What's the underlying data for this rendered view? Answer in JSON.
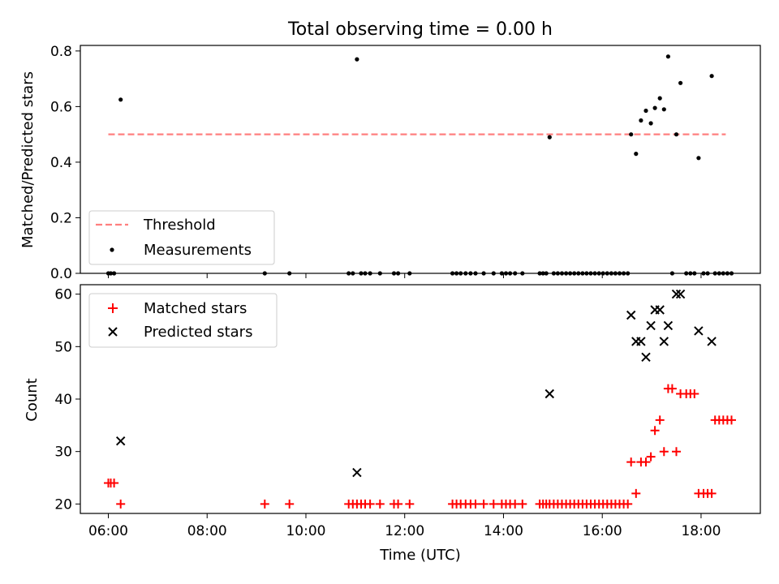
{
  "chart_data": {
    "type": "scatter",
    "title": "Total observing time = 0.00 h",
    "colors": {
      "threshold": "#ff7f7f",
      "measurements": "#000000",
      "matched": "#ff0000",
      "predicted": "#000000"
    },
    "top_panel": {
      "ylabel": "Matched/Predicted stars",
      "ylim": [
        0,
        0.82
      ],
      "yticks": [
        0.0,
        0.2,
        0.4,
        0.6,
        0.8
      ],
      "ytick_labels": [
        "0.0",
        "0.2",
        "0.4",
        "0.6",
        "0.8"
      ],
      "legend_position": "lower-left",
      "threshold": {
        "name": "Threshold",
        "y": 0.5,
        "x_range": [
          "06:00",
          "18:30"
        ],
        "style": "dashed"
      },
      "measurements": {
        "name": "Measurements",
        "points": [
          [
            "06:00",
            0
          ],
          [
            "06:03",
            0
          ],
          [
            "06:07",
            0
          ],
          [
            "06:15",
            0.625
          ],
          [
            "09:10",
            0
          ],
          [
            "09:40",
            0
          ],
          [
            "10:52",
            0
          ],
          [
            "10:57",
            0
          ],
          [
            "11:02",
            0.77
          ],
          [
            "11:07",
            0
          ],
          [
            "11:12",
            0
          ],
          [
            "11:18",
            0
          ],
          [
            "11:30",
            0
          ],
          [
            "11:47",
            0
          ],
          [
            "11:52",
            0
          ],
          [
            "12:06",
            0
          ],
          [
            "12:58",
            0
          ],
          [
            "13:03",
            0
          ],
          [
            "13:08",
            0
          ],
          [
            "13:14",
            0
          ],
          [
            "13:20",
            0
          ],
          [
            "13:26",
            0
          ],
          [
            "13:36",
            0
          ],
          [
            "13:48",
            0
          ],
          [
            "13:58",
            0
          ],
          [
            "14:03",
            0
          ],
          [
            "14:08",
            0
          ],
          [
            "14:14",
            0
          ],
          [
            "14:23",
            0
          ],
          [
            "14:44",
            0
          ],
          [
            "14:48",
            0
          ],
          [
            "14:52",
            0
          ],
          [
            "14:56",
            0.49
          ],
          [
            "15:01",
            0
          ],
          [
            "15:06",
            0
          ],
          [
            "15:11",
            0
          ],
          [
            "15:16",
            0
          ],
          [
            "15:21",
            0
          ],
          [
            "15:26",
            0
          ],
          [
            "15:31",
            0
          ],
          [
            "15:36",
            0
          ],
          [
            "15:41",
            0
          ],
          [
            "15:46",
            0
          ],
          [
            "15:51",
            0
          ],
          [
            "15:56",
            0
          ],
          [
            "16:01",
            0
          ],
          [
            "16:06",
            0
          ],
          [
            "16:11",
            0
          ],
          [
            "16:16",
            0
          ],
          [
            "16:21",
            0
          ],
          [
            "16:26",
            0
          ],
          [
            "16:31",
            0
          ],
          [
            "16:35",
            0.5
          ],
          [
            "16:41",
            0.43
          ],
          [
            "16:47",
            0.55
          ],
          [
            "16:53",
            0.585
          ],
          [
            "16:59",
            0.54
          ],
          [
            "17:04",
            0.595
          ],
          [
            "17:10",
            0.63
          ],
          [
            "17:15",
            0.59
          ],
          [
            "17:20",
            0.78
          ],
          [
            "17:25",
            0
          ],
          [
            "17:30",
            0.5
          ],
          [
            "17:35",
            0.685
          ],
          [
            "17:42",
            0
          ],
          [
            "17:47",
            0
          ],
          [
            "17:52",
            0
          ],
          [
            "17:57",
            0.415
          ],
          [
            "18:03",
            0
          ],
          [
            "18:08",
            0
          ],
          [
            "18:13",
            0.71
          ],
          [
            "18:17",
            0
          ],
          [
            "18:22",
            0
          ],
          [
            "18:27",
            0
          ],
          [
            "18:32",
            0
          ],
          [
            "18:37",
            0
          ]
        ]
      }
    },
    "bottom_panel": {
      "ylabel": "Count",
      "xlabel": "Time (UTC)",
      "ylim": [
        18.2,
        61.8
      ],
      "yticks": [
        20,
        30,
        40,
        50,
        60
      ],
      "ytick_labels": [
        "20",
        "30",
        "40",
        "50",
        "60"
      ],
      "xlim": [
        "05:26",
        "19:12"
      ],
      "xticks": [
        "06:00",
        "08:00",
        "10:00",
        "12:00",
        "14:00",
        "16:00",
        "18:00"
      ],
      "xtick_labels": [
        "06:00",
        "08:00",
        "10:00",
        "12:00",
        "14:00",
        "16:00",
        "18:00"
      ],
      "legend_position": "upper-left",
      "matched": {
        "name": "Matched stars",
        "points": [
          [
            "06:00",
            24
          ],
          [
            "06:03",
            24
          ],
          [
            "06:07",
            24
          ],
          [
            "06:15",
            20
          ],
          [
            "09:10",
            20
          ],
          [
            "09:40",
            20
          ],
          [
            "10:52",
            20
          ],
          [
            "10:57",
            20
          ],
          [
            "11:02",
            20
          ],
          [
            "11:07",
            20
          ],
          [
            "11:12",
            20
          ],
          [
            "11:18",
            20
          ],
          [
            "11:30",
            20
          ],
          [
            "11:47",
            20
          ],
          [
            "11:52",
            20
          ],
          [
            "12:06",
            20
          ],
          [
            "12:58",
            20
          ],
          [
            "13:03",
            20
          ],
          [
            "13:08",
            20
          ],
          [
            "13:14",
            20
          ],
          [
            "13:20",
            20
          ],
          [
            "13:26",
            20
          ],
          [
            "13:36",
            20
          ],
          [
            "13:48",
            20
          ],
          [
            "13:58",
            20
          ],
          [
            "14:03",
            20
          ],
          [
            "14:08",
            20
          ],
          [
            "14:14",
            20
          ],
          [
            "14:23",
            20
          ],
          [
            "14:44",
            20
          ],
          [
            "14:48",
            20
          ],
          [
            "14:52",
            20
          ],
          [
            "14:56",
            20
          ],
          [
            "15:01",
            20
          ],
          [
            "15:06",
            20
          ],
          [
            "15:11",
            20
          ],
          [
            "15:16",
            20
          ],
          [
            "15:21",
            20
          ],
          [
            "15:26",
            20
          ],
          [
            "15:31",
            20
          ],
          [
            "15:36",
            20
          ],
          [
            "15:41",
            20
          ],
          [
            "15:46",
            20
          ],
          [
            "15:51",
            20
          ],
          [
            "15:56",
            20
          ],
          [
            "16:01",
            20
          ],
          [
            "16:06",
            20
          ],
          [
            "16:11",
            20
          ],
          [
            "16:16",
            20
          ],
          [
            "16:21",
            20
          ],
          [
            "16:26",
            20
          ],
          [
            "16:31",
            20
          ],
          [
            "16:35",
            28
          ],
          [
            "16:41",
            22
          ],
          [
            "16:47",
            28
          ],
          [
            "16:53",
            28
          ],
          [
            "16:59",
            29
          ],
          [
            "17:04",
            34
          ],
          [
            "17:10",
            36
          ],
          [
            "17:15",
            30
          ],
          [
            "17:20",
            42
          ],
          [
            "17:25",
            42
          ],
          [
            "17:30",
            30
          ],
          [
            "17:35",
            41
          ],
          [
            "17:42",
            41
          ],
          [
            "17:47",
            41
          ],
          [
            "17:52",
            41
          ],
          [
            "17:57",
            22
          ],
          [
            "18:03",
            22
          ],
          [
            "18:08",
            22
          ],
          [
            "18:13",
            22
          ],
          [
            "18:17",
            36
          ],
          [
            "18:22",
            36
          ],
          [
            "18:27",
            36
          ],
          [
            "18:32",
            36
          ],
          [
            "18:37",
            36
          ]
        ]
      },
      "predicted": {
        "name": "Predicted stars",
        "points": [
          [
            "06:15",
            32
          ],
          [
            "11:02",
            26
          ],
          [
            "14:56",
            41
          ],
          [
            "16:35",
            56
          ],
          [
            "16:41",
            51
          ],
          [
            "16:47",
            51
          ],
          [
            "16:53",
            48
          ],
          [
            "16:59",
            54
          ],
          [
            "17:04",
            57
          ],
          [
            "17:10",
            57
          ],
          [
            "17:15",
            51
          ],
          [
            "17:20",
            54
          ],
          [
            "17:30",
            60
          ],
          [
            "17:35",
            60
          ],
          [
            "17:57",
            53
          ],
          [
            "18:13",
            51
          ]
        ]
      }
    }
  }
}
